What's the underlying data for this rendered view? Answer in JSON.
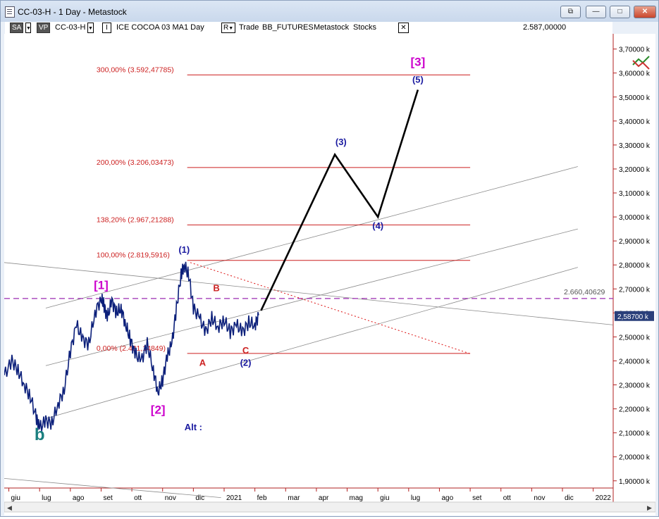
{
  "window": {
    "title": "CC-03-H - 1 Day - Metastock"
  },
  "window_buttons": {
    "restore": "⧉",
    "minimize": "—",
    "maximize": "□",
    "close": "✕"
  },
  "toolbar": {
    "sa": "SA",
    "vp": "VP",
    "symbol": "CC-03-H",
    "instr_toggle": "I",
    "instrument": "ICE COCOA 03 MA",
    "period": "1 Day",
    "r_toggle": "R",
    "trade": "Trade",
    "source": "BB_FUTURES",
    "metastock": "Metastock",
    "stocks": "Stocks",
    "close": "✕",
    "price": "2.587,00000"
  },
  "chart_data": {
    "type": "line",
    "y_axis": {
      "ticks": [
        "3,70000 k",
        "3,60000 k",
        "3,50000 k",
        "3,40000 k",
        "3,30000 k",
        "3,20000 k",
        "3,10000 k",
        "3,00000 k",
        "2,90000 k",
        "2,80000 k",
        "2,70000 k",
        "2,60000 k",
        "2,50000 k",
        "2,40000 k",
        "2,30000 k",
        "2,20000 k",
        "2,10000 k",
        "2,00000 k",
        "1,90000 k"
      ],
      "ylim": [
        1.87,
        3.74
      ],
      "current_label": "2,58700 k",
      "current_value": 2.587
    },
    "x_axis": {
      "ticks": [
        {
          "label": "giu",
          "t": 0
        },
        {
          "label": "lug",
          "t": 1
        },
        {
          "label": "ago",
          "t": 2
        },
        {
          "label": "set",
          "t": 3
        },
        {
          "label": "ott",
          "t": 4
        },
        {
          "label": "nov",
          "t": 5
        },
        {
          "label": "dic",
          "t": 6
        },
        {
          "label": "2021",
          "t": 7
        },
        {
          "label": "feb",
          "t": 8
        },
        {
          "label": "mar",
          "t": 9
        },
        {
          "label": "apr",
          "t": 10
        },
        {
          "label": "mag",
          "t": 11
        },
        {
          "label": "giu",
          "t": 12
        },
        {
          "label": "lug",
          "t": 13
        },
        {
          "label": "ago",
          "t": 14
        },
        {
          "label": "set",
          "t": 15
        },
        {
          "label": "ott",
          "t": 16
        },
        {
          "label": "nov",
          "t": 17
        },
        {
          "label": "dic",
          "t": 18
        },
        {
          "label": "2022",
          "t": 19
        }
      ],
      "xlim": [
        -0.15,
        19.65
      ]
    },
    "price_path": [
      [
        -0.15,
        2.34
      ],
      [
        0.1,
        2.4
      ],
      [
        0.3,
        2.36
      ],
      [
        0.5,
        2.3
      ],
      [
        0.7,
        2.25
      ],
      [
        0.9,
        2.16
      ],
      [
        1.0,
        2.12
      ],
      [
        1.2,
        2.15
      ],
      [
        1.4,
        2.14
      ],
      [
        1.6,
        2.22
      ],
      [
        1.8,
        2.28
      ],
      [
        2.0,
        2.44
      ],
      [
        2.2,
        2.55
      ],
      [
        2.4,
        2.49
      ],
      [
        2.6,
        2.47
      ],
      [
        2.8,
        2.6
      ],
      [
        3.0,
        2.66
      ],
      [
        3.1,
        2.63
      ],
      [
        3.2,
        2.58
      ],
      [
        3.35,
        2.65
      ],
      [
        3.5,
        2.6
      ],
      [
        3.65,
        2.62
      ],
      [
        3.8,
        2.55
      ],
      [
        3.95,
        2.49
      ],
      [
        4.1,
        2.43
      ],
      [
        4.3,
        2.4
      ],
      [
        4.5,
        2.47
      ],
      [
        4.7,
        2.36
      ],
      [
        4.85,
        2.27
      ],
      [
        5.0,
        2.32
      ],
      [
        5.15,
        2.42
      ],
      [
        5.3,
        2.47
      ],
      [
        5.45,
        2.62
      ],
      [
        5.6,
        2.76
      ],
      [
        5.7,
        2.8
      ],
      [
        5.85,
        2.76
      ],
      [
        6.0,
        2.62
      ],
      [
        6.2,
        2.58
      ],
      [
        6.4,
        2.52
      ],
      [
        6.6,
        2.58
      ],
      [
        6.8,
        2.54
      ],
      [
        7.0,
        2.57
      ],
      [
        7.2,
        2.52
      ],
      [
        7.4,
        2.55
      ],
      [
        7.6,
        2.52
      ],
      [
        7.8,
        2.56
      ],
      [
        8.0,
        2.55
      ],
      [
        8.12,
        2.59
      ]
    ],
    "projection_path": [
      [
        8.2,
        2.61
      ],
      [
        10.6,
        3.26
      ],
      [
        12.0,
        3.0
      ],
      [
        13.3,
        3.53
      ]
    ],
    "fib_levels": [
      {
        "label": "300,00% (3.592,47785)",
        "value": 3.592
      },
      {
        "label": "200,00% (3.206,03473)",
        "value": 3.206
      },
      {
        "label": "138,20% (2.967,21288)",
        "value": 2.967
      },
      {
        "label": "100,00% (2.819,5916)",
        "value": 2.819
      },
      {
        "label": "0,00% (2.431,14849)",
        "value": 2.431
      }
    ],
    "dashed_level": {
      "label": "2.660,40629",
      "value": 2.66
    },
    "trend_lines": [
      {
        "from": [
          1.2,
          2.16
        ],
        "to": [
          18.5,
          2.79
        ]
      },
      {
        "from": [
          1.2,
          2.38
        ],
        "to": [
          18.5,
          2.95
        ]
      },
      {
        "from": [
          1.2,
          2.62
        ],
        "to": [
          18.5,
          3.21
        ]
      },
      {
        "from": [
          -0.15,
          2.81
        ],
        "to": [
          19.65,
          2.55
        ]
      },
      {
        "from": [
          -0.15,
          1.91
        ],
        "to": [
          6.9,
          1.83
        ]
      }
    ],
    "red_dotted_line": {
      "from": [
        5.9,
        2.81
      ],
      "to": [
        15.0,
        2.43
      ]
    },
    "wave_labels": [
      {
        "text": "b",
        "t": 1.0,
        "v": 2.07,
        "color": "#1a7f7f"
      },
      {
        "text": "[1]",
        "t": 3.0,
        "v": 2.7,
        "color": "#cc00cc"
      },
      {
        "text": "[2]",
        "t": 4.85,
        "v": 2.18,
        "color": "#cc00cc"
      },
      {
        "text": "(1)",
        "t": 5.7,
        "v": 2.85,
        "color": "#1a1aa0"
      },
      {
        "text": "A",
        "t": 6.3,
        "v": 2.38,
        "color": "#cc2222"
      },
      {
        "text": "B",
        "t": 6.75,
        "v": 2.69,
        "color": "#cc2222"
      },
      {
        "text": "C",
        "t": 7.7,
        "v": 2.43,
        "color": "#cc2222"
      },
      {
        "text": "(2)",
        "t": 7.7,
        "v": 2.38,
        "color": "#1a1aa0"
      },
      {
        "text": "(3)",
        "t": 10.8,
        "v": 3.3,
        "color": "#1a1aa0"
      },
      {
        "text": "(4)",
        "t": 12.0,
        "v": 2.95,
        "color": "#1a1aa0"
      },
      {
        "text": "(5)",
        "t": 13.3,
        "v": 3.56,
        "color": "#1a1aa0"
      },
      {
        "text": "[3]",
        "t": 13.3,
        "v": 3.63,
        "color": "#cc00cc"
      },
      {
        "text": "Alt :",
        "t": 6.0,
        "v": 2.11,
        "color": "#1a1aa0"
      }
    ]
  }
}
